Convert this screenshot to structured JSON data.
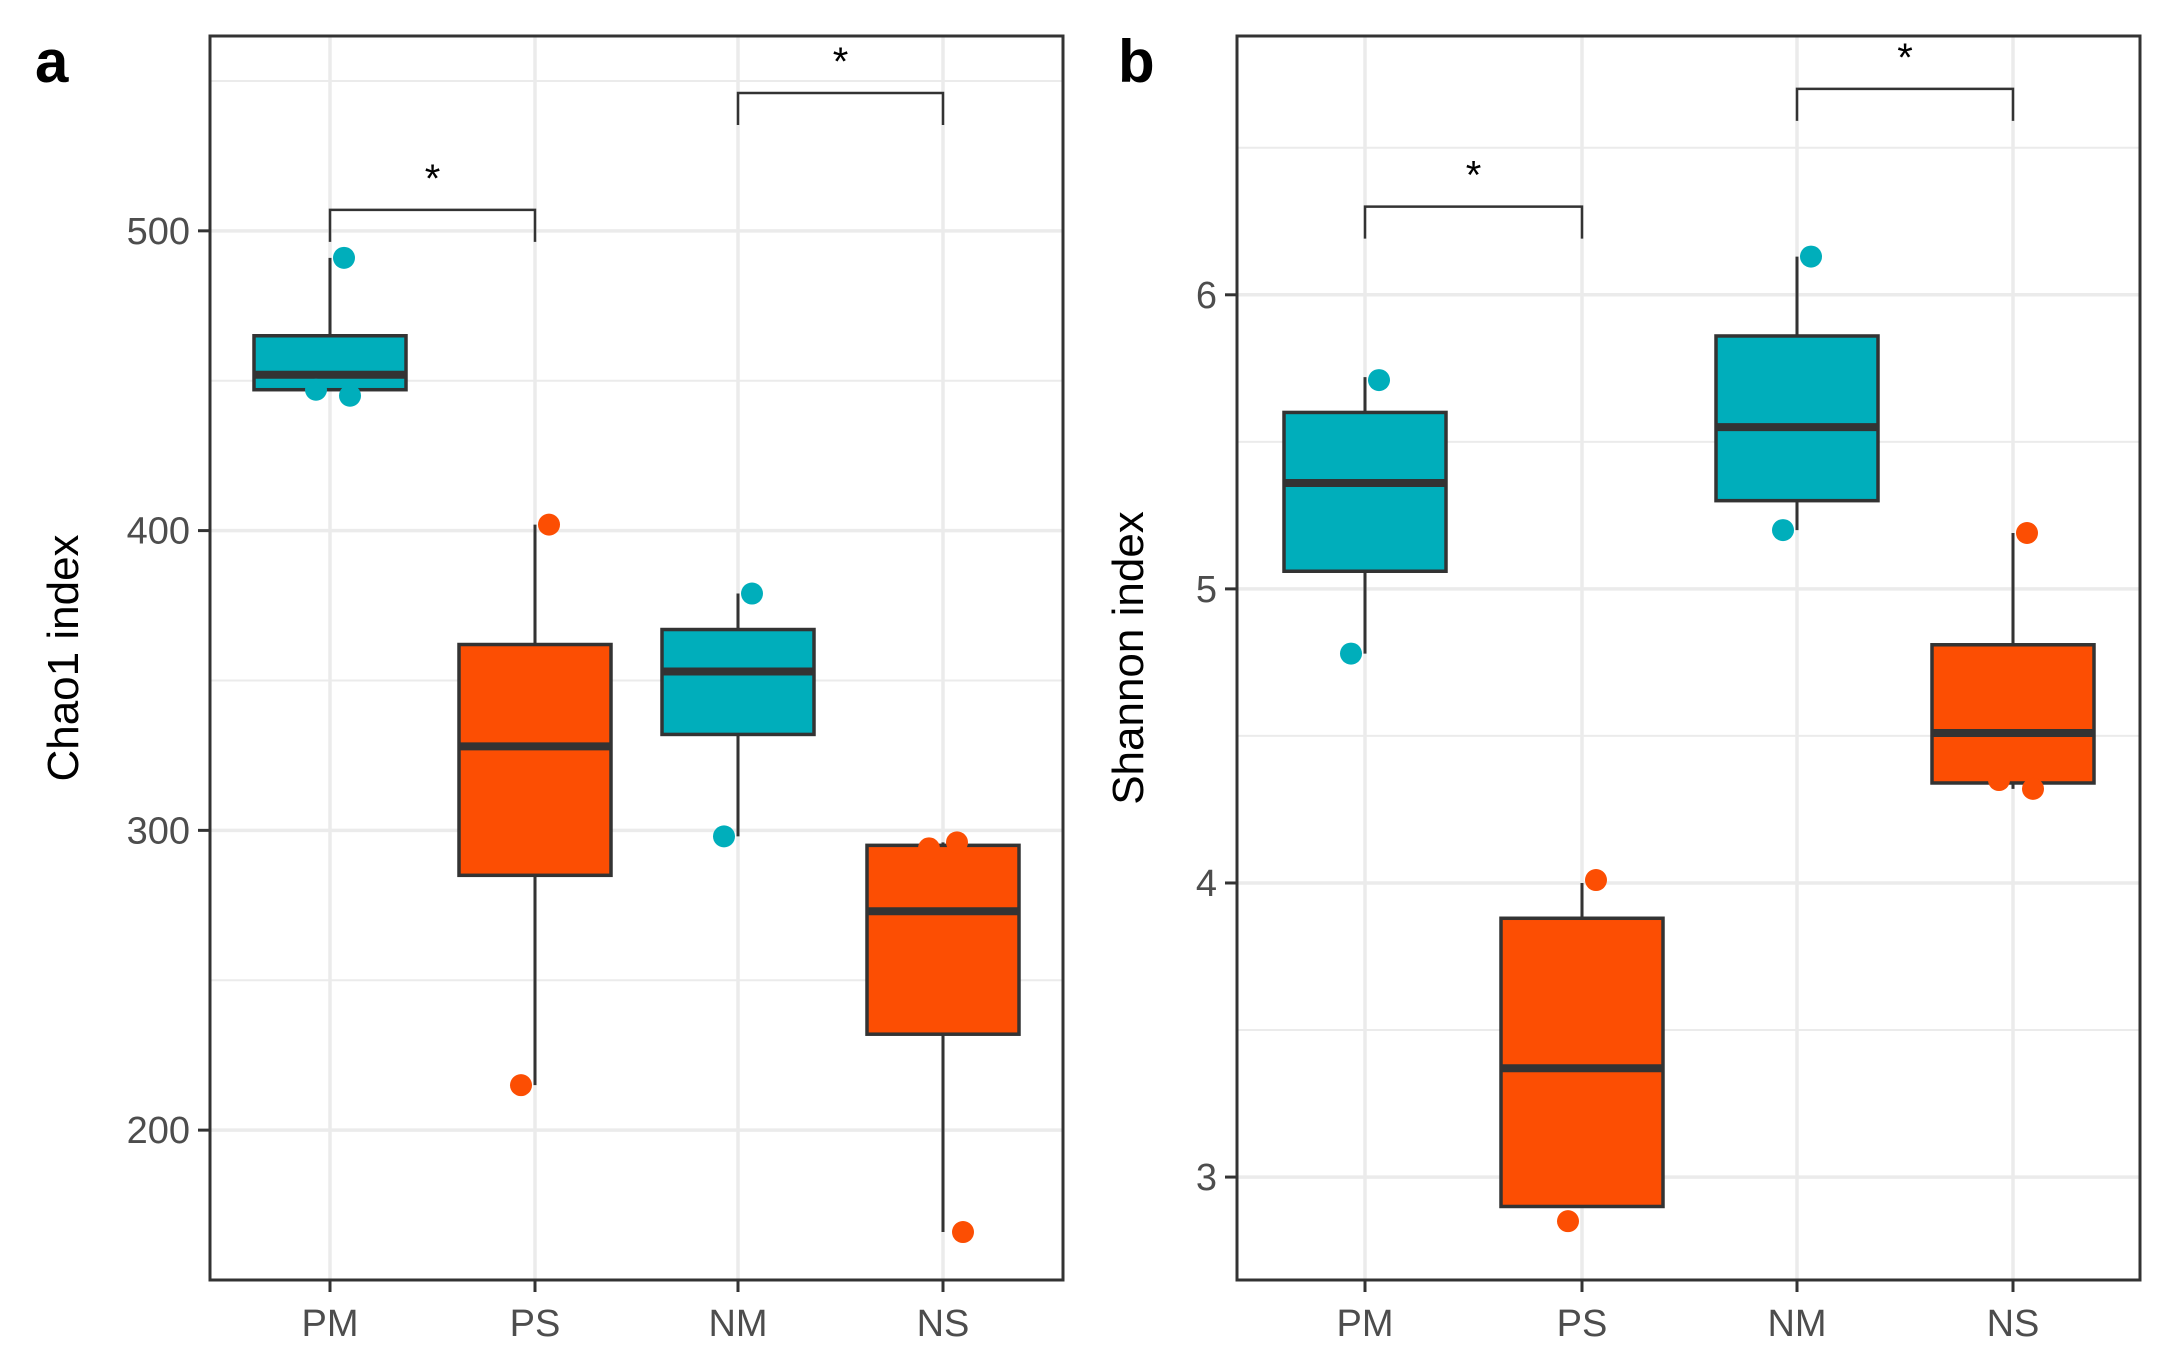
{
  "colors": {
    "M": "#00aebb",
    "S": "#fc4e03",
    "box_stroke": "#333333",
    "grid": "#ebebeb",
    "panel_border": "#333333"
  },
  "chart_data": [
    {
      "type": "box",
      "panel_label": "a",
      "ylabel": "Chao1 index",
      "xlabel": "",
      "categories": [
        "PM",
        "PS",
        "NM",
        "NS"
      ],
      "ylim": [
        150,
        565
      ],
      "yticks": [
        200,
        300,
        400,
        500
      ],
      "grid": true,
      "boxes": [
        {
          "group": "PM",
          "color": "M",
          "min": 447,
          "q1": 447,
          "median": 452,
          "q3": 465,
          "max": 491,
          "points": [
            491,
            447,
            445
          ]
        },
        {
          "group": "PS",
          "color": "S",
          "min": 215,
          "q1": 285,
          "median": 328,
          "q3": 362,
          "max": 402,
          "points": [
            402,
            215
          ]
        },
        {
          "group": "NM",
          "color": "M",
          "min": 298,
          "q1": 332,
          "median": 353,
          "q3": 367,
          "max": 379,
          "points": [
            379,
            298
          ]
        },
        {
          "group": "NS",
          "color": "S",
          "min": 166,
          "q1": 232,
          "median": 273,
          "q3": 295,
          "max": 296,
          "points": [
            296,
            294,
            166
          ]
        }
      ],
      "comparisons": [
        {
          "from": "PM",
          "to": "PS",
          "label": "*",
          "y": 507
        },
        {
          "from": "NM",
          "to": "NS",
          "label": "*",
          "y": 546
        }
      ]
    },
    {
      "type": "box",
      "panel_label": "b",
      "ylabel": "Shannon index",
      "xlabel": "",
      "categories": [
        "PM",
        "PS",
        "NM",
        "NS"
      ],
      "ylim": [
        2.65,
        6.88
      ],
      "yticks": [
        3,
        4,
        5,
        6
      ],
      "grid": true,
      "boxes": [
        {
          "group": "PM",
          "color": "M",
          "min": 4.78,
          "q1": 5.06,
          "median": 5.36,
          "q3": 5.6,
          "max": 5.72,
          "points": [
            5.71,
            4.78
          ]
        },
        {
          "group": "PS",
          "color": "S",
          "min": 2.9,
          "q1": 2.9,
          "median": 3.37,
          "q3": 3.88,
          "max": 4.0,
          "points": [
            4.01,
            2.85
          ]
        },
        {
          "group": "NM",
          "color": "M",
          "min": 5.2,
          "q1": 5.3,
          "median": 5.55,
          "q3": 5.86,
          "max": 6.13,
          "points": [
            6.13,
            5.2
          ]
        },
        {
          "group": "NS",
          "color": "S",
          "min": 4.32,
          "q1": 4.34,
          "median": 4.51,
          "q3": 4.81,
          "max": 5.19,
          "points": [
            5.19,
            4.35,
            4.32
          ]
        }
      ],
      "comparisons": [
        {
          "from": "PM",
          "to": "PS",
          "label": "*",
          "y": 6.3
        },
        {
          "from": "NM",
          "to": "NS",
          "label": "*",
          "y": 6.7
        }
      ]
    }
  ]
}
